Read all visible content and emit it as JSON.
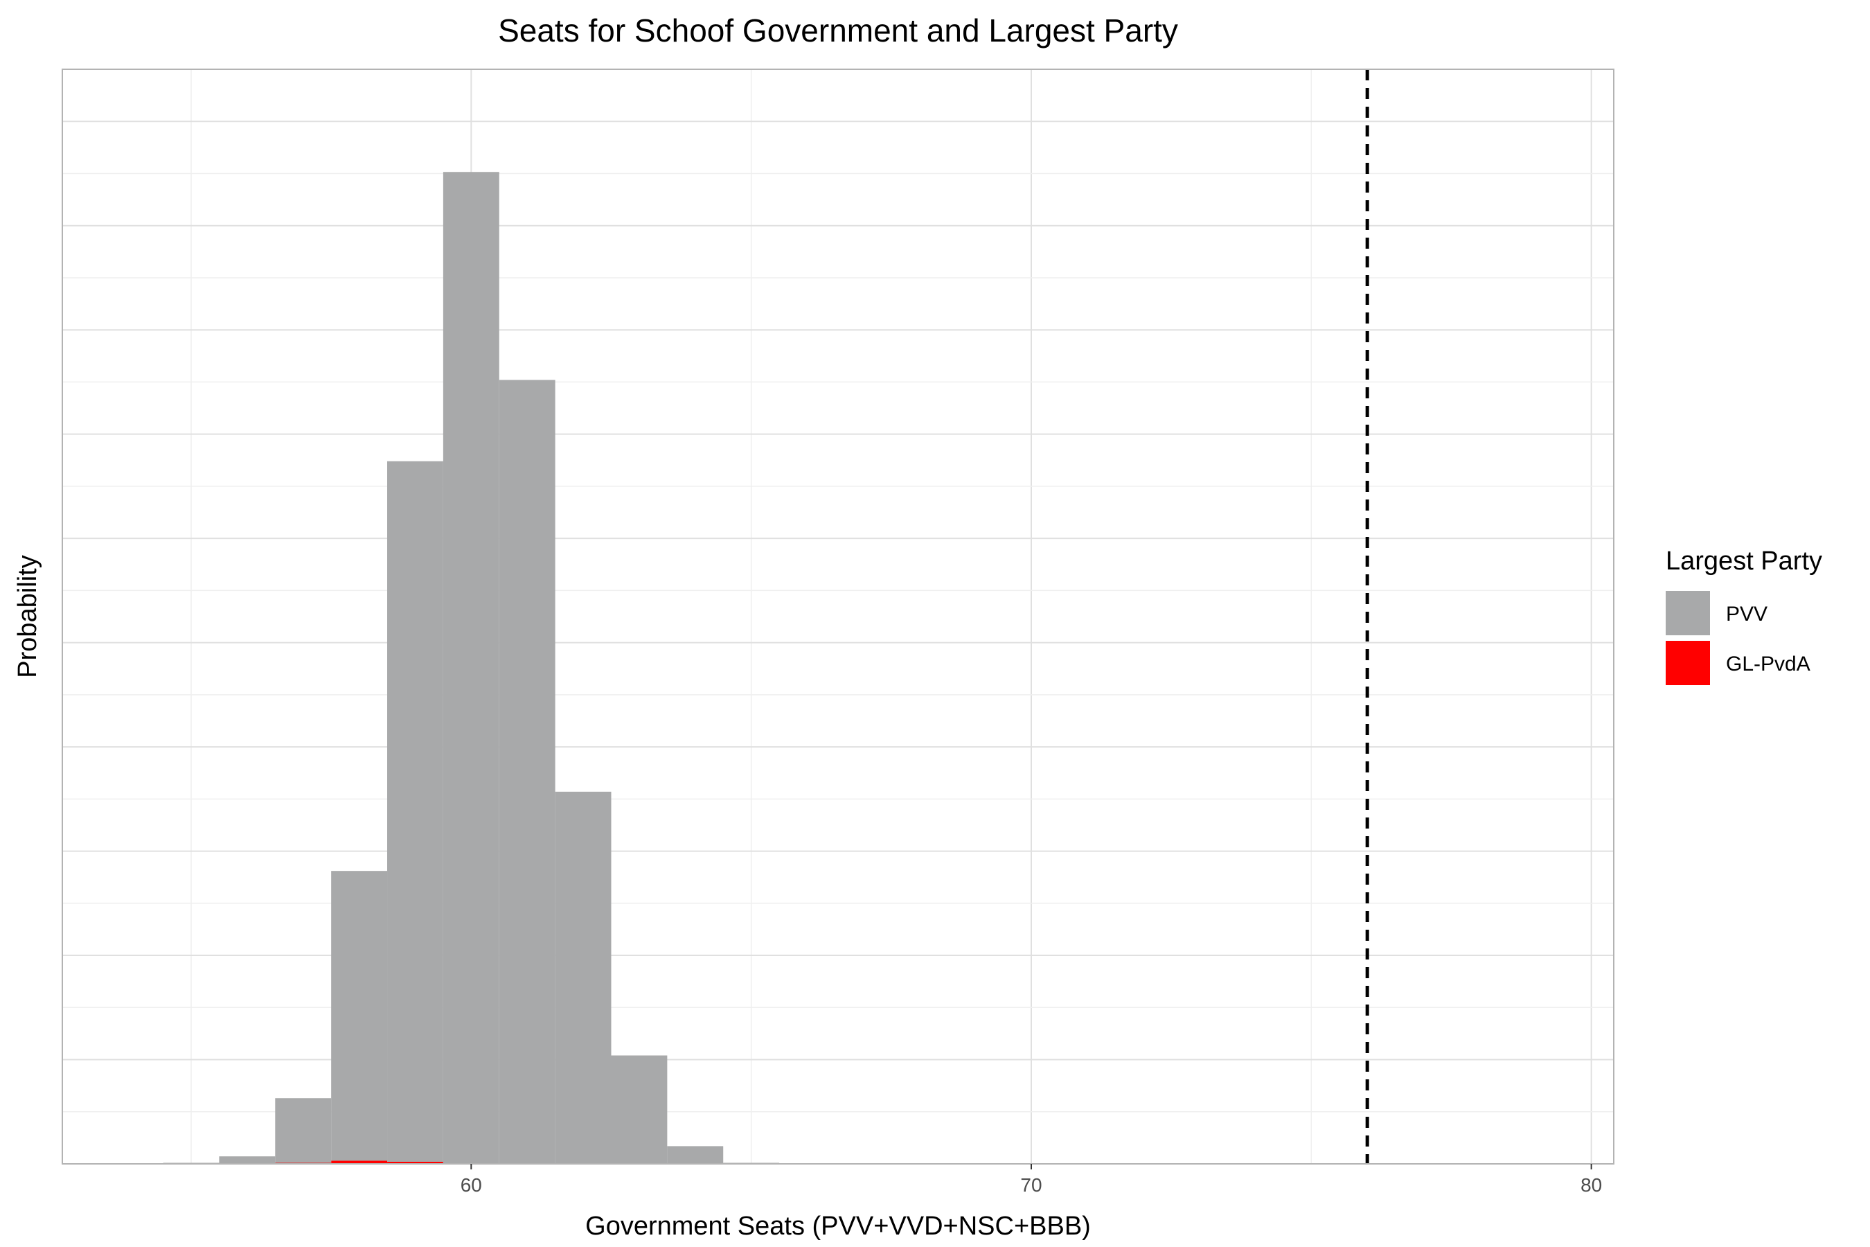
{
  "chart_data": {
    "type": "bar",
    "title": "Seats for Schoof Government and Largest Party",
    "xlabel": "Government Seats (PVV+VVD+NSC+BBB)",
    "ylabel": "Probability",
    "xlim": [
      52.7,
      80.4
    ],
    "ylim": [
      0,
      1.05
    ],
    "x_ticks": [
      60,
      70,
      80
    ],
    "x_tick_labels": [
      "60",
      "70",
      "80"
    ],
    "y_ticks_shown": false,
    "grid": true,
    "bin_width": 1,
    "stacked": true,
    "reference_line": {
      "x": 76,
      "style": "dashed",
      "color": "#000000"
    },
    "legend": {
      "title": "Largest Party",
      "position": "right"
    },
    "series": [
      {
        "name": "PVV",
        "color": "#a8a9aa",
        "x": [
          55,
          56,
          57,
          58,
          59,
          60,
          61,
          62,
          63,
          64,
          65
        ],
        "values": [
          0.001,
          0.007,
          0.062,
          0.278,
          0.672,
          0.951,
          0.752,
          0.357,
          0.104,
          0.017,
          0.001
        ]
      },
      {
        "name": "GL-PvdA",
        "color": "#ff0000",
        "x": [
          56,
          57,
          58,
          59,
          60
        ],
        "values": [
          0.0002,
          0.001,
          0.003,
          0.002,
          0.0005
        ]
      }
    ]
  }
}
